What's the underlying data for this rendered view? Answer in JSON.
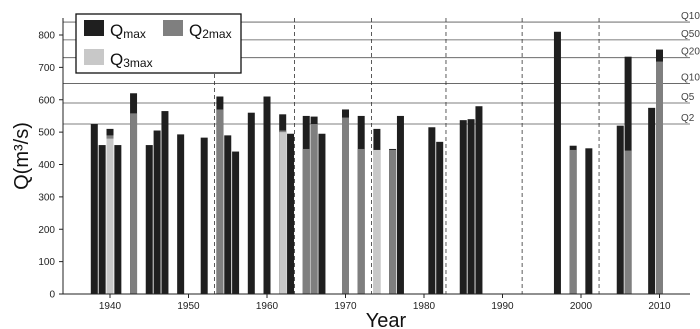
{
  "chart_data": {
    "type": "bar",
    "xlabel": "Year",
    "ylabel": "Q(m³/s)",
    "xlim": [
      1930,
      2015
    ],
    "ylim": [
      0,
      850
    ],
    "xticks": [
      1940,
      1950,
      1960,
      1970,
      1980,
      1990,
      2000,
      2010
    ],
    "yticks": [
      0,
      100,
      200,
      300,
      400,
      500,
      600,
      700,
      800
    ],
    "grid": false,
    "legend": {
      "placement": "top-left",
      "entries": [
        {
          "label": "Q",
          "subscript": "max",
          "color": "#1f1f1f"
        },
        {
          "label": "Q",
          "subscript": "2max",
          "color": "#7f7f7f"
        },
        {
          "label": "Q",
          "subscript": "3max",
          "color": "#c8c8c8"
        }
      ]
    },
    "return_period_lines": [
      {
        "label": "Q10",
        "value": 840
      },
      {
        "label": "Q50",
        "value": 785
      },
      {
        "label": "Q20",
        "value": 730
      },
      {
        "label": "Q10",
        "value": 650
      },
      {
        "label": "Q5",
        "value": 590
      },
      {
        "label": "Q2",
        "value": 525
      }
    ],
    "change_point_years": [
      1953.3,
      1963.5,
      1973.3,
      1982.8,
      1992.5,
      2002.3
    ],
    "series": [
      {
        "name": "Qmax",
        "color": "#1f1f1f",
        "points": [
          [
            1938,
            525
          ],
          [
            1939,
            460
          ],
          [
            1940,
            510
          ],
          [
            1941,
            460
          ],
          [
            1943,
            620
          ],
          [
            1945,
            460
          ],
          [
            1946,
            505
          ],
          [
            1947,
            565
          ],
          [
            1949,
            493
          ],
          [
            1952,
            483
          ],
          [
            1954,
            610
          ],
          [
            1955,
            490
          ],
          [
            1956,
            440
          ],
          [
            1958,
            560
          ],
          [
            1960,
            610
          ],
          [
            1962,
            555
          ],
          [
            1963,
            495
          ],
          [
            1965,
            550
          ],
          [
            1966,
            548
          ],
          [
            1967,
            495
          ],
          [
            1970,
            570
          ],
          [
            1972,
            550
          ],
          [
            1974,
            510
          ],
          [
            1976,
            448
          ],
          [
            1977,
            550
          ],
          [
            1981,
            515
          ],
          [
            1982,
            470
          ],
          [
            1985,
            537
          ],
          [
            1986,
            540
          ],
          [
            1987,
            580
          ],
          [
            1997,
            810
          ],
          [
            1999,
            458
          ],
          [
            2001,
            450
          ],
          [
            2005,
            520
          ],
          [
            2006,
            733
          ],
          [
            2009,
            575
          ],
          [
            2010,
            755
          ]
        ]
      },
      {
        "name": "Q2max",
        "color": "#7f7f7f",
        "points": [
          [
            1940,
            490
          ],
          [
            1943,
            558
          ],
          [
            1954,
            570
          ],
          [
            1962,
            505
          ],
          [
            1965,
            448
          ],
          [
            1966,
            525
          ],
          [
            1970,
            545
          ],
          [
            1972,
            448
          ],
          [
            1976,
            445
          ],
          [
            1999,
            445
          ],
          [
            2006,
            443
          ],
          [
            2010,
            718
          ]
        ]
      },
      {
        "name": "Q3max",
        "color": "#c8c8c8",
        "points": [
          [
            1940,
            480
          ],
          [
            1962,
            500
          ],
          [
            1974,
            445
          ]
        ]
      }
    ]
  }
}
